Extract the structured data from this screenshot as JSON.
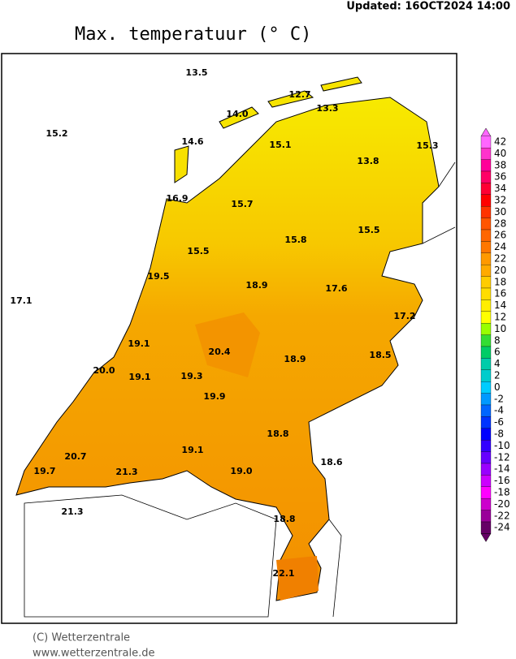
{
  "header": {
    "updated": "Updated:  16OCT2024  14:00",
    "title": "Max. temperatuur (° C)"
  },
  "readings": [
    "13.5",
    "12.7",
    "13.3",
    "14.0",
    "15.2",
    "15.1",
    "15.3",
    "14.6",
    "13.8",
    "16.9",
    "15.7",
    "15.5",
    "15.8",
    "15.5",
    "19.5",
    "18.9",
    "17.6",
    "17.1",
    "17.2",
    "19.1",
    "20.4",
    "18.9",
    "18.5",
    "20.0",
    "19.1",
    "19.3",
    "19.9",
    "18.8",
    "20.7",
    "19.1",
    "18.6",
    "19.7",
    "21.3",
    "19.0",
    "21.3",
    "18.8",
    "22.1"
  ],
  "legend": {
    "values": [
      42,
      40,
      38,
      36,
      34,
      32,
      30,
      28,
      26,
      24,
      22,
      20,
      18,
      16,
      14,
      12,
      10,
      8,
      6,
      4,
      2,
      0,
      -2,
      -4,
      -6,
      -8,
      -10,
      -12,
      -14,
      -16,
      -18,
      -20,
      -22,
      -24
    ],
    "colors": [
      "#ff66ff",
      "#ff33cc",
      "#ff0099",
      "#ff0066",
      "#ff0033",
      "#ff0000",
      "#ff3300",
      "#ff5500",
      "#ff6600",
      "#ff7700",
      "#ff9900",
      "#ffaa00",
      "#ffcc00",
      "#ffdd00",
      "#ffee00",
      "#ffff00",
      "#99ff00",
      "#33dd33",
      "#00cc66",
      "#00ccaa",
      "#00cccc",
      "#00ccff",
      "#0099ff",
      "#0066ff",
      "#0033ff",
      "#0000ff",
      "#3300ff",
      "#6600ff",
      "#9900ff",
      "#cc00ff",
      "#ff00ff",
      "#cc00cc",
      "#990099",
      "#660066"
    ]
  },
  "footer": {
    "copyright": "(C) Wetterzentrale",
    "url": "www.wetterzentrale.de"
  }
}
